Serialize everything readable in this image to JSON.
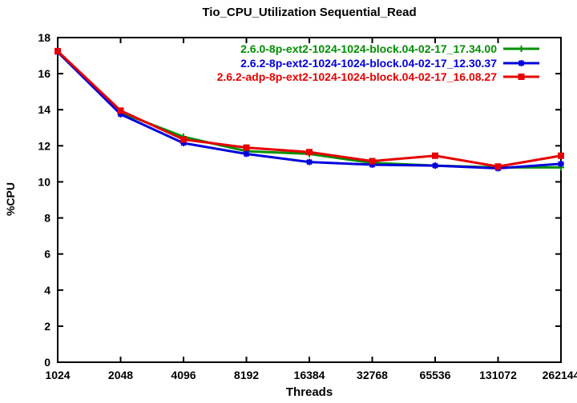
{
  "chart_data": {
    "type": "line",
    "title": "Tio_CPU_Utilization Sequential_Read",
    "xlabel": "Threads",
    "ylabel": "%CPU",
    "x_scale": "log2",
    "categories": [
      "1024",
      "2048",
      "4096",
      "8192",
      "16384",
      "32768",
      "65536",
      "131072",
      "262144"
    ],
    "x_values": [
      1024,
      2048,
      4096,
      8192,
      16384,
      32768,
      65536,
      131072,
      262144
    ],
    "ylim": [
      0,
      18
    ],
    "y_ticks": [
      0,
      2,
      4,
      6,
      8,
      10,
      12,
      14,
      16,
      18
    ],
    "grid": false,
    "legend_position": "top-right-inside",
    "series": [
      {
        "name": "2.6.0-8p-ext2-1024-1024-block.04-02-17_17.34.00",
        "color": "#009000",
        "marker": "plus",
        "values": [
          17.2,
          13.85,
          12.5,
          11.7,
          11.55,
          11.05,
          10.9,
          10.8,
          10.8
        ]
      },
      {
        "name": "2.6.2-8p-ext2-1024-1024-block.04-02-17_12.30.37",
        "color": "#0000dc",
        "marker": "star",
        "values": [
          17.2,
          13.75,
          12.15,
          11.55,
          11.1,
          10.95,
          10.9,
          10.75,
          11.0
        ]
      },
      {
        "name": "2.6.2-adp-8p-ext2-1024-1024-block.04-02-17_16.08.27",
        "color": "#e60000",
        "marker": "square",
        "values": [
          17.25,
          13.95,
          12.35,
          11.9,
          11.65,
          11.15,
          11.45,
          10.85,
          11.45
        ]
      }
    ]
  }
}
